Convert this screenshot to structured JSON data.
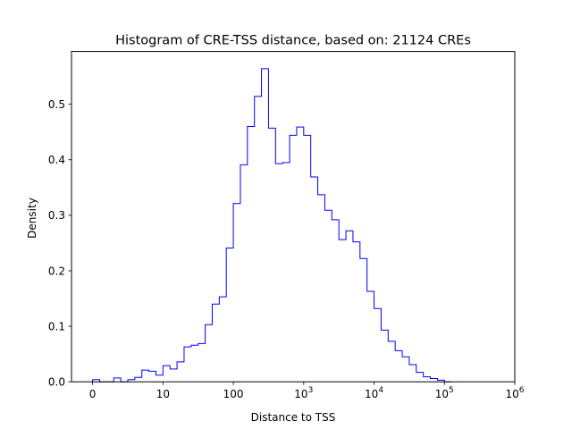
{
  "chart_data": {
    "type": "histogram",
    "title": "Histogram of CRE-TSS distance, based on: 21124 CREs",
    "xlabel": "Distance to TSS",
    "ylabel": "Density",
    "x_scale": "symlog",
    "xlim": [
      -0.3,
      6.0
    ],
    "ylim": [
      0,
      0.595
    ],
    "x_ticks": [
      {
        "value": 0,
        "main": "0",
        "sup": ""
      },
      {
        "value": 1,
        "main": "10",
        "sup": ""
      },
      {
        "value": 2,
        "main": "100",
        "sup": ""
      },
      {
        "value": 3,
        "main": "10",
        "sup": "3"
      },
      {
        "value": 4,
        "main": "10",
        "sup": "4"
      },
      {
        "value": 5,
        "main": "10",
        "sup": "5"
      },
      {
        "value": 6,
        "main": "10",
        "sup": "6"
      }
    ],
    "y_ticks": [
      "0.0",
      "0.1",
      "0.2",
      "0.3",
      "0.4",
      "0.5"
    ],
    "y_tick_values": [
      0.0,
      0.1,
      0.2,
      0.3,
      0.4,
      0.5
    ],
    "line_color": "#0000ff",
    "bin_start": 0,
    "bin_width": 0.1,
    "densities": [
      0.004,
      0.0,
      0.0,
      0.007,
      0.0,
      0.004,
      0.008,
      0.021,
      0.019,
      0.012,
      0.029,
      0.023,
      0.036,
      0.063,
      0.066,
      0.069,
      0.103,
      0.14,
      0.153,
      0.241,
      0.321,
      0.391,
      0.46,
      0.514,
      0.564,
      0.457,
      0.393,
      0.395,
      0.444,
      0.459,
      0.444,
      0.369,
      0.337,
      0.309,
      0.292,
      0.256,
      0.272,
      0.252,
      0.222,
      0.163,
      0.132,
      0.093,
      0.073,
      0.056,
      0.045,
      0.031,
      0.017,
      0.009,
      0.006,
      0.003,
      0.0
    ]
  }
}
